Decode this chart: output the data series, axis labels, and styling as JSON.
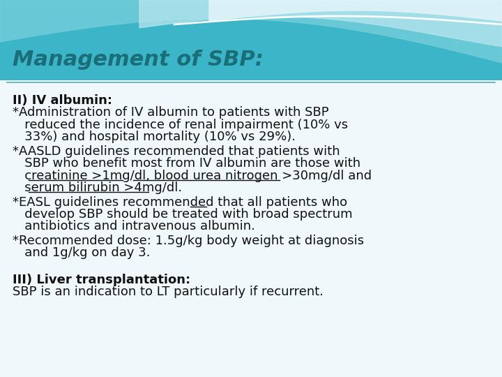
{
  "title": "Management of SBP:",
  "title_color": "#1a6e78",
  "title_fontsize": 22,
  "bg_main_color": "#f0f8fb",
  "bg_top_teal": "#4db8cc",
  "bg_top_light": "#a8dde8",
  "body_text_color": "#111111",
  "body_fontsize": 13.0,
  "section2_heading": "II) IV albumin:",
  "section3_heading": "III) Liver transplantation:",
  "section3_text": "SBP is an indication to LT particularly if recurrent."
}
